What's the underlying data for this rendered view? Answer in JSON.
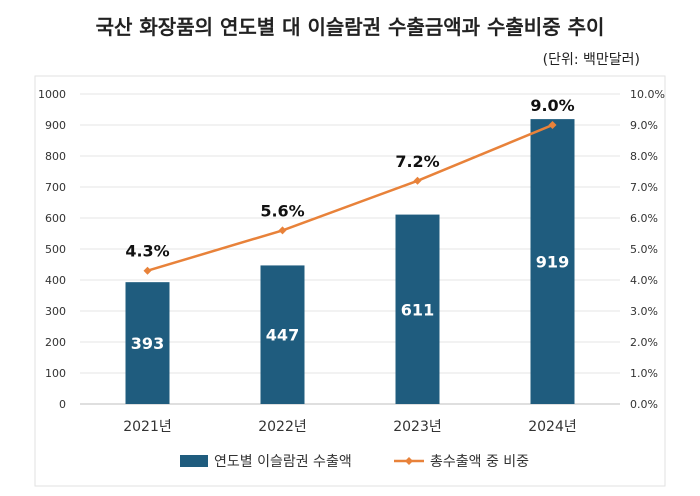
{
  "chart_data": {
    "type": "bar",
    "title": "국산 화장품의 연도별 대 이슬람권 수출금액과 수출비중 추이",
    "unit_note": "(단위: 백만달러)",
    "categories": [
      "2021년",
      "2022년",
      "2023년",
      "2024년"
    ],
    "series": [
      {
        "name": "연도별 이슬람권 수출액",
        "type": "bar",
        "axis": "left",
        "color": "#1f5c7e",
        "values": [
          393,
          447,
          611,
          919
        ],
        "labels": [
          "393",
          "447",
          "611",
          "919"
        ]
      },
      {
        "name": "총수출액 중 비중",
        "type": "line",
        "axis": "right",
        "color": "#e8823a",
        "values": [
          4.3,
          5.6,
          7.2,
          9.0
        ],
        "labels": [
          "4.3%",
          "5.6%",
          "7.2%",
          "9.0%"
        ]
      }
    ],
    "y_left": {
      "min": 0,
      "max": 1000,
      "ticks": [
        "0",
        "100",
        "200",
        "300",
        "400",
        "500",
        "600",
        "700",
        "800",
        "900",
        "1000"
      ]
    },
    "y_right": {
      "min": 0,
      "max": 10,
      "ticks": [
        "0.0%",
        "1.0%",
        "2.0%",
        "3.0%",
        "4.0%",
        "5.0%",
        "6.0%",
        "7.0%",
        "8.0%",
        "9.0%",
        "10.0%"
      ]
    },
    "grid": true,
    "legend_position": "bottom"
  }
}
